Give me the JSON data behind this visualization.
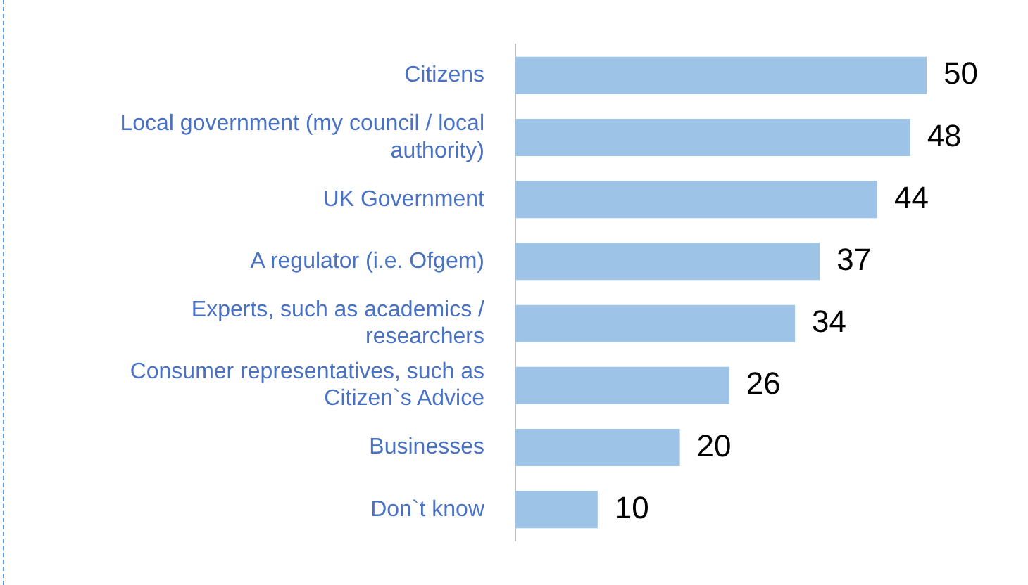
{
  "chart_data": {
    "type": "bar",
    "orientation": "horizontal",
    "categories": [
      "Citizens",
      "Local government (my council / local authority)",
      "UK Government",
      "A regulator (i.e. Ofgem)",
      "Experts, such as academics / researchers",
      "Consumer representatives, such as Citizen`s Advice",
      "Businesses",
      "Don`t know"
    ],
    "values": [
      50,
      48,
      44,
      37,
      34,
      26,
      20,
      10
    ],
    "color": "#9dc3e6",
    "data_labels": true,
    "grid": false,
    "legend": false
  }
}
